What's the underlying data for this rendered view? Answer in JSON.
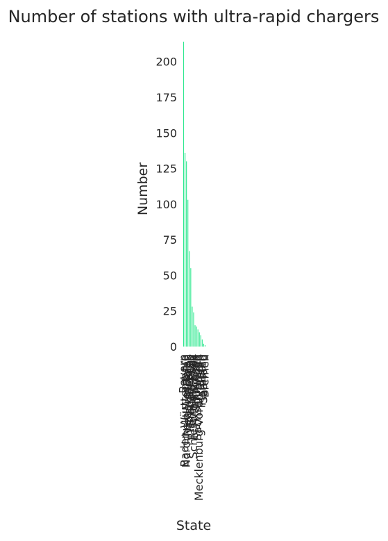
{
  "chart_data": {
    "type": "bar",
    "title": "Number of stations with ultra-rapid chargers",
    "xlabel": "State",
    "ylabel": "Number",
    "ylim": [
      0,
      214
    ],
    "yticks": [
      0,
      25,
      50,
      75,
      100,
      125,
      150,
      175,
      200
    ],
    "grid": false,
    "legend": "none",
    "bar_color": "#2ee88f",
    "categories": [
      "Bayern",
      "Baden-Württemberg",
      "Nordrhein-Westfalen",
      "Niedersachsen",
      "Hessen",
      "Brandenburg",
      "Rheinland-Pfalz",
      "Schleswig-Holstein",
      "Sachsen",
      "Thüringen",
      "Sachsen-Anhalt",
      "Mecklenburg-Vorpommern",
      "Berlin",
      "Hamburg",
      "Saarland",
      "Bremen"
    ],
    "values": [
      214,
      136,
      130,
      103,
      67,
      55,
      28,
      24,
      15,
      14,
      12,
      10,
      8,
      5,
      2,
      1
    ]
  }
}
